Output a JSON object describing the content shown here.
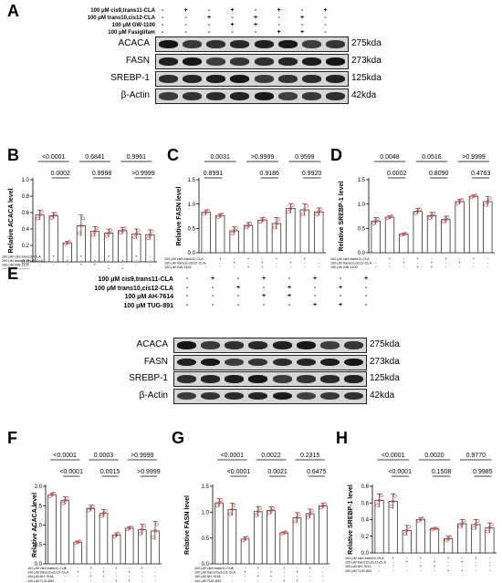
{
  "panels": {
    "A": {
      "letter": "A",
      "conditions": [
        "100 μM cis9,trans11-CLA",
        "100 μM trans10,cis12-CLA",
        "100 μM GW-1100",
        "100 μM Fasiglifam"
      ],
      "signs": [
        [
          "-",
          "+",
          "-",
          "+",
          "-",
          "+",
          "-",
          "+"
        ],
        [
          "-",
          "-",
          "+",
          "-",
          "+",
          "-",
          "+",
          "-"
        ],
        [
          "-",
          "-",
          "-",
          "+",
          "+",
          "-",
          "-",
          "-"
        ],
        [
          "-",
          "-",
          "-",
          "-",
          "-",
          "+",
          "+",
          "-"
        ]
      ],
      "blots": [
        {
          "name": "ACACA",
          "size": "275kda"
        },
        {
          "name": "FASN",
          "size": "273kda"
        },
        {
          "name": "SREBP-1",
          "size": "125kda"
        },
        {
          "name": "β-Actin",
          "size": "42kda"
        }
      ]
    },
    "E": {
      "letter": "E",
      "conditions": [
        "100 μM cis9,trans11-CLA",
        "100 μM trans10,cis12-CLA",
        "100 μM AH-7614",
        "100 μM TUG-891"
      ],
      "signs": [
        [
          "-",
          "+",
          "-",
          "+",
          "-",
          "+",
          "-",
          "+"
        ],
        [
          "-",
          "-",
          "+",
          "-",
          "+",
          "-",
          "+",
          "-"
        ],
        [
          "-",
          "-",
          "-",
          "+",
          "+",
          "-",
          "-",
          "-"
        ],
        [
          "-",
          "-",
          "-",
          "-",
          "-",
          "+",
          "+",
          "-"
        ]
      ],
      "blots": [
        {
          "name": "ACACA",
          "size": "275kda"
        },
        {
          "name": "FASN",
          "size": "273kda"
        },
        {
          "name": "SREBP-1",
          "size": "125kda"
        },
        {
          "name": "β-Actin",
          "size": "42kda"
        }
      ]
    }
  },
  "chart_data": [
    {
      "id": "B",
      "letter": "B",
      "type": "bar",
      "ylabel": "Relative ACACA level",
      "ylim": [
        0,
        1.0
      ],
      "yticks": [
        0.0,
        0.2,
        0.4,
        0.6,
        0.8,
        1.0
      ],
      "ytick_labels": [
        "0.0",
        "0.2",
        "0.4",
        "0.6",
        "0.8",
        "1.0"
      ],
      "values": [
        0.57,
        0.56,
        0.23,
        0.44,
        0.37,
        0.35,
        0.38,
        0.34,
        0.33
      ],
      "errors": [
        0.06,
        0.04,
        0.02,
        0.13,
        0.06,
        0.05,
        0.04,
        0.06,
        0.06
      ],
      "comparisons": [
        {
          "text": "<0.0001",
          "from": 0,
          "to": 2,
          "level": 0
        },
        {
          "text": "0.0002",
          "from": 1,
          "to": 2,
          "level": 1
        },
        {
          "text": "0.6841",
          "from": 3,
          "to": 5,
          "level": 0
        },
        {
          "text": "0.9998",
          "from": 4,
          "to": 5,
          "level": 1
        },
        {
          "text": "0.9961",
          "from": 6,
          "to": 8,
          "level": 0
        },
        {
          "text": ">0.9999",
          "from": 7,
          "to": 8,
          "level": 1
        }
      ],
      "condition_labels": [
        "100 μM cis9,trans11-CLA",
        "100 μM trans10,cis12-CLA",
        "100 μM GW-1100",
        "100 μM Fasiglifam"
      ]
    },
    {
      "id": "C",
      "letter": "C",
      "type": "bar",
      "ylabel": "Relative FASN level",
      "ylim": [
        0,
        1.5
      ],
      "yticks": [
        0.0,
        0.5,
        1.0,
        1.5
      ],
      "ytick_labels": [
        "0.0",
        "0.5",
        "1.0",
        "1.5"
      ],
      "values": [
        0.83,
        0.76,
        0.45,
        0.56,
        0.67,
        0.6,
        0.91,
        0.88,
        0.84
      ],
      "errors": [
        0.05,
        0.04,
        0.08,
        0.06,
        0.05,
        0.12,
        0.1,
        0.12,
        0.08
      ],
      "comparisons": [
        {
          "text": "0.0031",
          "from": 0,
          "to": 2,
          "level": 0
        },
        {
          "text": "0.8991",
          "from": 0,
          "to": 1,
          "level": 1
        },
        {
          "text": ">0.9999",
          "from": 3,
          "to": 5,
          "level": 0
        },
        {
          "text": "0.9186",
          "from": 4,
          "to": 5,
          "level": 1
        },
        {
          "text": "0.9599",
          "from": 6,
          "to": 8,
          "level": 0
        },
        {
          "text": "0.9920",
          "from": 7,
          "to": 8,
          "level": 1
        }
      ],
      "condition_labels": [
        "100 μM cis9,trans11-CLA",
        "100 μM trans10,cis12-CLA",
        "100 μM GW-1100",
        "100 μM Fasiglifam"
      ]
    },
    {
      "id": "D",
      "letter": "D",
      "type": "bar",
      "ylabel": "Relative SREBP-1 level",
      "ylim": [
        0,
        1.5
      ],
      "yticks": [
        0.0,
        0.5,
        1.0,
        1.5
      ],
      "ytick_labels": [
        "0.0",
        "0.5",
        "1.0",
        "1.5"
      ],
      "values": [
        0.65,
        0.73,
        0.38,
        0.85,
        0.76,
        0.68,
        1.05,
        1.16,
        1.05
      ],
      "errors": [
        0.07,
        0.03,
        0.02,
        0.06,
        0.07,
        0.07,
        0.05,
        0.03,
        0.1
      ],
      "comparisons": [
        {
          "text": "0.0048",
          "from": 0,
          "to": 2,
          "level": 0
        },
        {
          "text": "0.0002",
          "from": 1,
          "to": 2,
          "level": 1
        },
        {
          "text": "0.0516",
          "from": 3,
          "to": 5,
          "level": 0
        },
        {
          "text": "0.8090",
          "from": 4,
          "to": 5,
          "level": 1
        },
        {
          "text": ">0.9999",
          "from": 6,
          "to": 8,
          "level": 0
        },
        {
          "text": "0.4763",
          "from": 7,
          "to": 8,
          "level": 1
        }
      ],
      "condition_labels": [
        "100 μM cis9,trans11-CLA",
        "100 μM trans10,cis12-CLA",
        "100 μM GW-1100",
        "100 μM Fasiglifam"
      ]
    },
    {
      "id": "F",
      "letter": "F",
      "type": "bar",
      "ylabel": "Relative ACACA level",
      "ylim": [
        0,
        2.0
      ],
      "yticks": [
        0.0,
        0.5,
        1.0,
        1.5,
        2.0
      ],
      "ytick_labels": [
        "0.0",
        "0.5",
        "1.0",
        "1.5",
        "2.0"
      ],
      "values": [
        1.78,
        1.63,
        0.56,
        1.43,
        1.3,
        0.74,
        0.92,
        0.88,
        0.85
      ],
      "errors": [
        0.05,
        0.1,
        0.03,
        0.08,
        0.1,
        0.06,
        0.04,
        0.14,
        0.24
      ],
      "comparisons": [
        {
          "text": "<0.0001",
          "from": 0,
          "to": 2,
          "level": 0
        },
        {
          "text": "<0.0001",
          "from": 1,
          "to": 2,
          "level": 1
        },
        {
          "text": "0.0003",
          "from": 3,
          "to": 5,
          "level": 0
        },
        {
          "text": "0.0015",
          "from": 4,
          "to": 5,
          "level": 1
        },
        {
          "text": ">0.9999",
          "from": 6,
          "to": 8,
          "level": 0
        },
        {
          "text": ">0.9999",
          "from": 7,
          "to": 8,
          "level": 1
        }
      ],
      "condition_labels": [
        "100 μM cis9,trans11-CLA",
        "100 μM trans10,cis12-CLA",
        "100 μM AH-7614",
        "100 μM TUG-891"
      ]
    },
    {
      "id": "G",
      "letter": "G",
      "type": "bar",
      "ylabel": "Relative FASN level",
      "ylim": [
        0,
        1.5
      ],
      "yticks": [
        0.0,
        0.5,
        1.0,
        1.5
      ],
      "ytick_labels": [
        "0.0",
        "0.5",
        "1.0",
        "1.5"
      ],
      "values": [
        1.18,
        1.05,
        0.48,
        1.01,
        1.03,
        0.6,
        0.89,
        0.97,
        1.12
      ],
      "errors": [
        0.08,
        0.12,
        0.04,
        0.1,
        0.07,
        0.02,
        0.1,
        0.09,
        0.05
      ],
      "comparisons": [
        {
          "text": "<0.0001",
          "from": 0,
          "to": 2,
          "level": 0
        },
        {
          "text": "<0.0001",
          "from": 1,
          "to": 2,
          "level": 1
        },
        {
          "text": "0.0022",
          "from": 3,
          "to": 5,
          "level": 0
        },
        {
          "text": "0.0021",
          "from": 4,
          "to": 5,
          "level": 1
        },
        {
          "text": "0.2315",
          "from": 6,
          "to": 8,
          "level": 0
        },
        {
          "text": "0.6475",
          "from": 7,
          "to": 8,
          "level": 1
        }
      ],
      "condition_labels": [
        "100 μM cis9,trans11-CLA",
        "100 μM trans10,cis12-CLA",
        "100 μM AH-7614",
        "100 μM TUG-891"
      ]
    },
    {
      "id": "H",
      "letter": "H",
      "type": "bar",
      "ylabel": "Relative SREBP-1 level",
      "ylim": [
        0,
        0.8
      ],
      "yticks": [
        0.0,
        0.2,
        0.4,
        0.6,
        0.8
      ],
      "ytick_labels": [
        "0.0",
        "0.2",
        "0.4",
        "0.6",
        "0.8"
      ],
      "values": [
        0.63,
        0.62,
        0.27,
        0.4,
        0.29,
        0.17,
        0.35,
        0.34,
        0.3
      ],
      "errors": [
        0.08,
        0.09,
        0.06,
        0.02,
        0.01,
        0.03,
        0.05,
        0.06,
        0.06
      ],
      "comparisons": [
        {
          "text": "<0.0001",
          "from": 0,
          "to": 2,
          "level": 0
        },
        {
          "text": "<0.0001",
          "from": 1,
          "to": 2,
          "level": 1
        },
        {
          "text": "0.0020",
          "from": 3,
          "to": 5,
          "level": 0
        },
        {
          "text": "0.1508",
          "from": 4,
          "to": 5,
          "level": 1
        },
        {
          "text": "0.9770",
          "from": 6,
          "to": 8,
          "level": 0
        },
        {
          "text": "0.9985",
          "from": 7,
          "to": 8,
          "level": 1
        }
      ],
      "condition_labels": [
        "100 μM cis9,trans11-CLA",
        "100 μM trans10,cis12-CLA",
        "100 μM AH-7614",
        "100 μM TUG-891"
      ]
    }
  ],
  "colors": {
    "bar_fill": "#ffffff",
    "bar_edge": "#333333",
    "dot": "#e06a6a",
    "error": "#333333",
    "band": "#1a1a1a",
    "blot_bg": "#d6d6d6"
  }
}
